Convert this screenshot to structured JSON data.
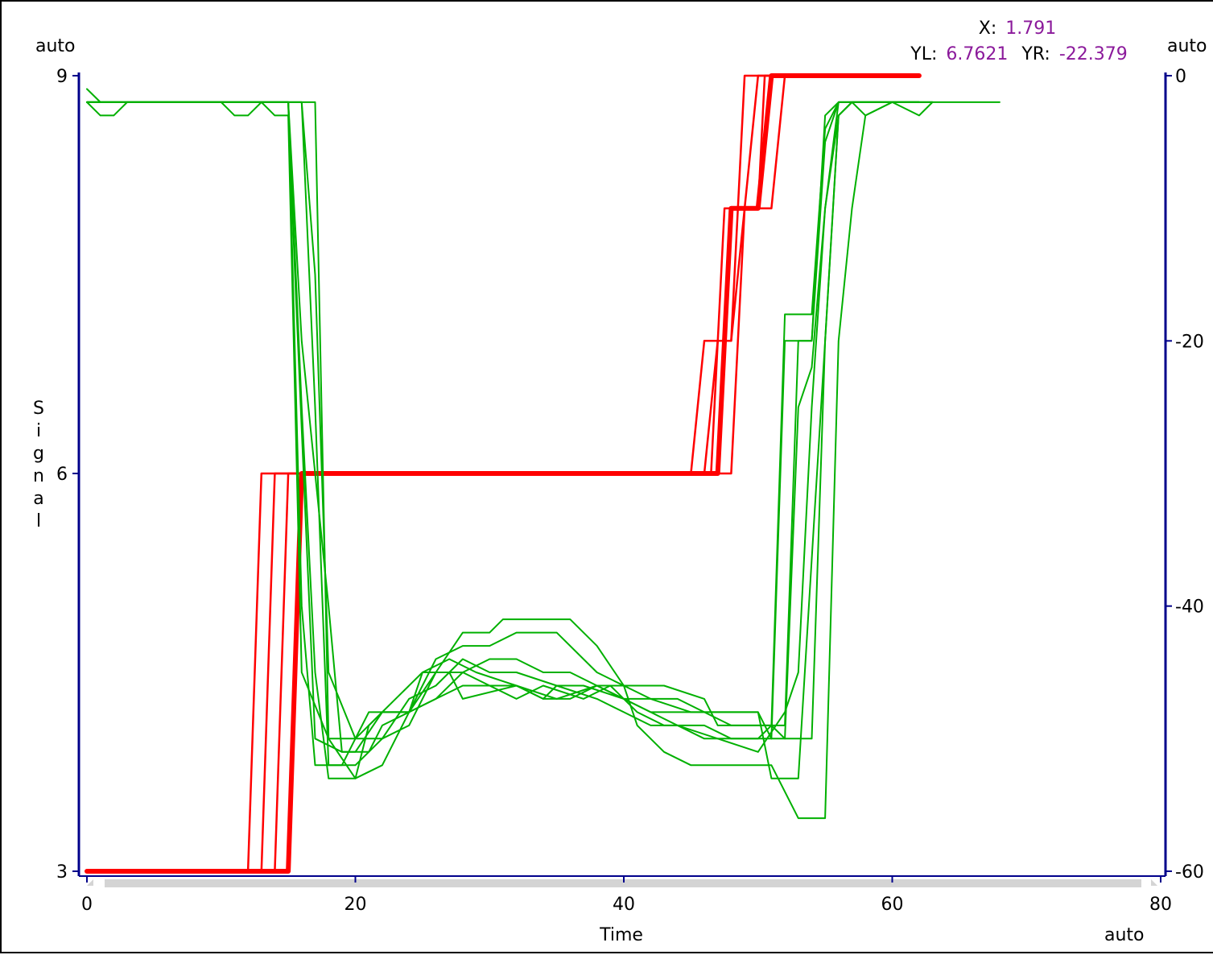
{
  "chart_data": {
    "type": "line",
    "xlabel": "Time",
    "ylabel": "Signal",
    "xlim": [
      0,
      80
    ],
    "ylim_left": [
      3,
      9
    ],
    "ylim_right": [
      -60,
      0
    ],
    "x_ticks": [
      "0",
      "20",
      "40",
      "60",
      "80"
    ],
    "y_left_ticks": [
      "3",
      "6",
      "9"
    ],
    "y_right_ticks": [
      "0",
      "-20",
      "-40",
      "-60"
    ],
    "corner_labels": {
      "top_left": "auto",
      "top_right": "auto",
      "bottom_right": "auto"
    },
    "cursor": {
      "x_label": "X:",
      "x_value": "1.791",
      "yl_label": "YL:",
      "yl_value": "6.7621",
      "yr_label": "YR:",
      "yr_value": "-22.379"
    },
    "colors": {
      "left_series": "#ff0000",
      "right_series": "#00b000",
      "axis": "#00008b",
      "scrollbar": "#d4d4d4"
    },
    "series": [
      {
        "axis": "left",
        "width": 2.5,
        "x": [
          0,
          12,
          13,
          16,
          45,
          46,
          48,
          49,
          50,
          62
        ],
        "y": [
          3,
          3,
          6,
          6,
          6,
          7,
          7,
          9,
          9,
          9
        ]
      },
      {
        "axis": "left",
        "width": 2.5,
        "x": [
          0,
          13,
          14,
          16,
          46,
          47,
          48,
          49,
          50,
          61
        ],
        "y": [
          3,
          3,
          6,
          6,
          6,
          7,
          7,
          8,
          9,
          9
        ]
      },
      {
        "axis": "left",
        "width": 2.5,
        "x": [
          0,
          14,
          15,
          16,
          46.5,
          47.5,
          50,
          50.5,
          51,
          61
        ],
        "y": [
          3,
          3,
          6,
          6,
          6,
          8,
          8,
          9,
          9,
          9
        ]
      },
      {
        "axis": "left",
        "width": 2.5,
        "x": [
          0,
          15,
          16,
          48,
          49,
          51,
          52,
          60
        ],
        "y": [
          3,
          3,
          6,
          6,
          8,
          8,
          9,
          9
        ]
      },
      {
        "axis": "left",
        "width": 6,
        "x": [
          0,
          15,
          16,
          47,
          48,
          50,
          51,
          62
        ],
        "y": [
          3,
          3,
          6,
          6,
          8,
          8,
          9,
          9
        ]
      },
      {
        "axis": "right",
        "width": 2,
        "x": [
          0,
          1,
          2,
          10,
          11,
          12,
          13,
          14,
          15,
          16,
          18,
          20,
          21,
          24,
          25,
          27,
          28,
          32,
          34,
          35,
          38,
          40,
          42,
          44,
          46,
          48,
          50,
          51,
          54,
          55,
          56,
          57,
          58,
          60,
          62,
          63
        ],
        "y": [
          -1,
          -2,
          -2,
          -2,
          -3,
          -3,
          -2,
          -3,
          -3,
          -45,
          -50,
          -50,
          -48,
          -48,
          -45,
          -45,
          -47,
          -46,
          -47,
          -46,
          -47,
          -48,
          -49,
          -49,
          -50,
          -50,
          -50,
          -50,
          -50,
          -20,
          -3,
          -2,
          -3,
          -2,
          -3,
          -2
        ]
      },
      {
        "axis": "right",
        "width": 2,
        "x": [
          0,
          1,
          2,
          3,
          14,
          15,
          16,
          17,
          19,
          20,
          22,
          24,
          26,
          28,
          30,
          32,
          35,
          37,
          40,
          42,
          45,
          48,
          50,
          51,
          53,
          55,
          56,
          57,
          58,
          61,
          63
        ],
        "y": [
          -2,
          -3,
          -3,
          -2,
          -2,
          -2,
          -40,
          -52,
          -52,
          -50,
          -50,
          -47,
          -46,
          -44,
          -45,
          -45,
          -46,
          -46,
          -47,
          -47,
          -48,
          -48,
          -48,
          -53,
          -53,
          -20,
          -3,
          -2,
          -2,
          -2,
          -2
        ]
      },
      {
        "axis": "right",
        "width": 2,
        "x": [
          0,
          15,
          16,
          17,
          18,
          20,
          21,
          23,
          25,
          27,
          29,
          32,
          35,
          38,
          40,
          42,
          44,
          47,
          50,
          52,
          53,
          54,
          55,
          56,
          57,
          62
        ],
        "y": [
          -2,
          -2,
          -25,
          -45,
          -53,
          -53,
          -49,
          -47,
          -45,
          -44,
          -45,
          -46,
          -47,
          -46,
          -47,
          -48,
          -49,
          -50,
          -51,
          -48,
          -45,
          -25,
          -10,
          -3,
          -2,
          -2
        ]
      },
      {
        "axis": "right",
        "width": 2,
        "x": [
          0,
          15,
          15.5,
          17,
          19,
          20,
          22,
          24,
          26,
          28,
          30,
          32,
          34,
          36,
          38,
          40,
          42,
          44,
          46,
          48,
          50,
          51,
          52,
          53,
          54,
          55,
          56,
          58,
          62
        ],
        "y": [
          -2,
          -2,
          -15,
          -50,
          -51,
          -51,
          -48,
          -48,
          -45,
          -45,
          -46,
          -46,
          -47,
          -47,
          -46,
          -46,
          -47,
          -47,
          -48,
          -48,
          -48,
          -50,
          -20,
          -20,
          -20,
          -5,
          -2,
          -2,
          -2
        ]
      },
      {
        "axis": "right",
        "width": 2,
        "x": [
          0,
          15,
          16,
          18,
          19,
          20,
          21,
          22,
          24,
          26,
          28,
          30,
          32,
          34,
          37,
          39,
          41,
          43,
          46,
          48,
          50,
          51,
          52,
          53,
          54,
          55,
          56,
          57,
          63
        ],
        "y": [
          -2,
          -2,
          -20,
          -40,
          -51,
          -51,
          -51,
          -49,
          -48,
          -47,
          -46,
          -46,
          -47,
          -46,
          -47,
          -46,
          -48,
          -49,
          -49,
          -50,
          -50,
          -49,
          -18,
          -18,
          -18,
          -4,
          -2,
          -2,
          -2
        ]
      },
      {
        "axis": "right",
        "width": 2,
        "x": [
          0,
          16,
          17,
          18,
          20,
          22,
          24,
          26,
          28,
          30,
          31,
          33,
          36,
          38,
          40,
          41,
          43,
          45,
          47,
          50,
          51,
          53,
          54,
          55,
          56,
          57,
          58,
          60,
          62
        ],
        "y": [
          -2,
          -2,
          -25,
          -52,
          -52,
          -50,
          -49,
          -45,
          -42,
          -42,
          -41,
          -41,
          -41,
          -43,
          -46,
          -49,
          -51,
          -52,
          -52,
          -52,
          -52,
          -56,
          -56,
          -56,
          -20,
          -10,
          -3,
          -2,
          -2
        ]
      },
      {
        "axis": "right",
        "width": 2,
        "x": [
          0,
          16,
          17,
          18,
          20,
          22,
          24,
          26,
          28,
          30,
          32,
          35,
          38,
          40,
          43,
          46,
          47,
          49,
          51,
          52,
          53,
          54,
          55,
          56,
          57,
          62,
          68
        ],
        "y": [
          -2,
          -2,
          -15,
          -45,
          -50,
          -48,
          -48,
          -44,
          -43,
          -43,
          -42,
          -42,
          -45,
          -46,
          -46,
          -47,
          -49,
          -49,
          -49,
          -50,
          -25,
          -22,
          -10,
          -2,
          -2,
          -2,
          -2
        ]
      },
      {
        "axis": "right",
        "width": 2,
        "x": [
          0,
          17,
          18,
          20,
          22,
          24,
          26,
          28,
          30,
          32,
          34,
          36,
          38,
          40,
          42,
          44,
          46,
          48,
          50,
          52,
          53,
          54,
          55,
          56,
          58,
          62
        ],
        "y": [
          -2,
          -2,
          -50,
          -53,
          -52,
          -48,
          -47,
          -45,
          -44,
          -44,
          -45,
          -45,
          -46,
          -47,
          -48,
          -48,
          -48,
          -49,
          -49,
          -49,
          -20,
          -20,
          -3,
          -2,
          -2,
          -2
        ]
      }
    ]
  }
}
